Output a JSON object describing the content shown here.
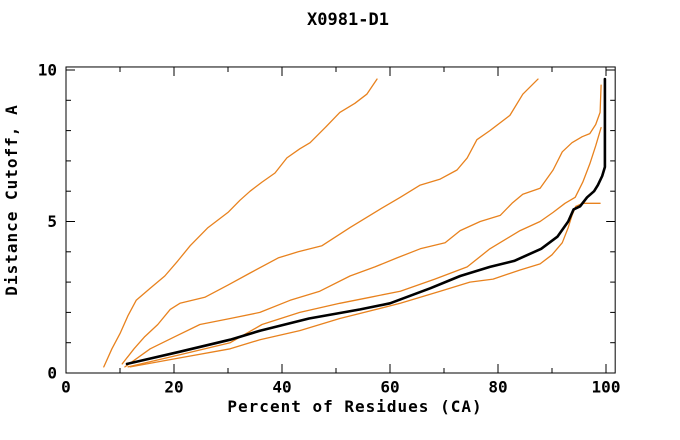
{
  "title": "X0981-D1",
  "chart_data": {
    "type": "line",
    "title": "X0981-D1",
    "xlabel": "Percent of Residues (CA)",
    "ylabel": "Distance Cutoff, A",
    "xlim": [
      0,
      101.7
    ],
    "ylim": [
      0,
      10.1
    ],
    "x_ticks_major": [
      0,
      20,
      40,
      60,
      80,
      100
    ],
    "x_ticks_minor": [
      10,
      30,
      50,
      70,
      90
    ],
    "x_tick_labels": [
      "0",
      "20",
      "40",
      "60",
      "80",
      "100"
    ],
    "y_ticks_major": [
      0,
      5,
      10
    ],
    "y_ticks_minor": [
      1,
      2,
      3,
      4,
      6,
      7,
      8,
      9
    ],
    "y_tick_labels": [
      "0",
      "5",
      "10"
    ],
    "grid": false,
    "legend": "none",
    "frame_color": "#000000",
    "model_color": "#e8821e",
    "reference_color": "#000000",
    "series": [
      {
        "id": "orange-curve-1",
        "color": "#e8821e",
        "width": 1.3,
        "points": [
          [
            7,
            0.2
          ],
          [
            8.5,
            0.8
          ],
          [
            10,
            1.3
          ],
          [
            11.5,
            1.9
          ],
          [
            13,
            2.4
          ],
          [
            15.6,
            2.8
          ],
          [
            18.3,
            3.2
          ],
          [
            20.7,
            3.7
          ],
          [
            23,
            4.2
          ],
          [
            26.3,
            4.8
          ],
          [
            30,
            5.3
          ],
          [
            32.2,
            5.7
          ],
          [
            34.1,
            6.0
          ],
          [
            36.3,
            6.3
          ],
          [
            38.7,
            6.6
          ],
          [
            40.9,
            7.1
          ],
          [
            43.3,
            7.4
          ],
          [
            45.2,
            7.6
          ],
          [
            48,
            8.1
          ],
          [
            50.7,
            8.6
          ],
          [
            53.5,
            8.9
          ],
          [
            55.7,
            9.2
          ],
          [
            57.6,
            9.7
          ]
        ]
      },
      {
        "id": "orange-curve-2",
        "color": "#e8821e",
        "width": 1.3,
        "points": [
          [
            10.4,
            0.3
          ],
          [
            12.6,
            0.8
          ],
          [
            14.6,
            1.2
          ],
          [
            17,
            1.6
          ],
          [
            19.3,
            2.1
          ],
          [
            21.1,
            2.3
          ],
          [
            25.7,
            2.5
          ],
          [
            30,
            2.9
          ],
          [
            34.1,
            3.3
          ],
          [
            39.3,
            3.8
          ],
          [
            43,
            4.0
          ],
          [
            47.4,
            4.2
          ],
          [
            52.6,
            4.8
          ],
          [
            58.1,
            5.4
          ],
          [
            61.9,
            5.8
          ],
          [
            65.6,
            6.2
          ],
          [
            69.3,
            6.4
          ],
          [
            72.4,
            6.7
          ],
          [
            74.3,
            7.1
          ],
          [
            76.1,
            7.7
          ],
          [
            78.5,
            8.0
          ],
          [
            82.2,
            8.5
          ],
          [
            84.6,
            9.2
          ],
          [
            87.4,
            9.7
          ]
        ]
      },
      {
        "id": "orange-curve-3",
        "color": "#e8821e",
        "width": 1.3,
        "points": [
          [
            10.9,
            0.2
          ],
          [
            15.6,
            0.8
          ],
          [
            20.2,
            1.2
          ],
          [
            24.8,
            1.6
          ],
          [
            30.4,
            1.8
          ],
          [
            35.9,
            2.0
          ],
          [
            41.5,
            2.4
          ],
          [
            47,
            2.7
          ],
          [
            52.6,
            3.2
          ],
          [
            57.2,
            3.5
          ],
          [
            61.3,
            3.8
          ],
          [
            65.6,
            4.1
          ],
          [
            70.2,
            4.3
          ],
          [
            73,
            4.7
          ],
          [
            76.7,
            5.0
          ],
          [
            80.4,
            5.2
          ],
          [
            82.6,
            5.6
          ],
          [
            84.6,
            5.9
          ],
          [
            87.8,
            6.1
          ],
          [
            90.2,
            6.7
          ],
          [
            91.9,
            7.3
          ],
          [
            93.7,
            7.6
          ],
          [
            95.6,
            7.8
          ],
          [
            97,
            7.9
          ],
          [
            98.1,
            8.2
          ],
          [
            98.9,
            8.6
          ],
          [
            99.1,
            9.5
          ]
        ]
      },
      {
        "id": "orange-curve-4",
        "color": "#e8821e",
        "width": 1.3,
        "points": [
          [
            11.5,
            0.2
          ],
          [
            21.1,
            0.6
          ],
          [
            30.4,
            1.0
          ],
          [
            36.3,
            1.6
          ],
          [
            43.3,
            2.0
          ],
          [
            50.7,
            2.3
          ],
          [
            56.3,
            2.5
          ],
          [
            61.9,
            2.7
          ],
          [
            68.3,
            3.1
          ],
          [
            74.3,
            3.5
          ],
          [
            78.5,
            4.1
          ],
          [
            84.1,
            4.7
          ],
          [
            87.8,
            5.0
          ],
          [
            90.2,
            5.3
          ],
          [
            92.4,
            5.6
          ],
          [
            94.3,
            5.8
          ],
          [
            95.7,
            6.3
          ],
          [
            97,
            6.9
          ],
          [
            98.1,
            7.5
          ],
          [
            99.1,
            8.1
          ]
        ]
      },
      {
        "id": "orange-curve-5",
        "color": "#e8821e",
        "width": 1.3,
        "points": [
          [
            11.9,
            0.2
          ],
          [
            21.1,
            0.5
          ],
          [
            30.4,
            0.8
          ],
          [
            35.9,
            1.1
          ],
          [
            43.3,
            1.4
          ],
          [
            50.7,
            1.8
          ],
          [
            61.9,
            2.3
          ],
          [
            69.3,
            2.7
          ],
          [
            74.8,
            3.0
          ],
          [
            79.1,
            3.1
          ],
          [
            84.1,
            3.4
          ],
          [
            87.8,
            3.6
          ],
          [
            90,
            3.9
          ],
          [
            91.9,
            4.3
          ],
          [
            93,
            4.8
          ],
          [
            93.7,
            5.2
          ],
          [
            94.4,
            5.5
          ],
          [
            95.7,
            5.6
          ],
          [
            97,
            5.6
          ],
          [
            98.9,
            5.6
          ]
        ]
      },
      {
        "id": "black-reference-curve",
        "color": "#000000",
        "width": 2.6,
        "points": [
          [
            11.3,
            0.3
          ],
          [
            21,
            0.7
          ],
          [
            30.4,
            1.1
          ],
          [
            36,
            1.4
          ],
          [
            45,
            1.8
          ],
          [
            54.5,
            2.1
          ],
          [
            60,
            2.3
          ],
          [
            67.5,
            2.8
          ],
          [
            73,
            3.2
          ],
          [
            78.5,
            3.5
          ],
          [
            83,
            3.7
          ],
          [
            88,
            4.1
          ],
          [
            91,
            4.5
          ],
          [
            93,
            5.0
          ],
          [
            94,
            5.4
          ],
          [
            95.2,
            5.5
          ],
          [
            96.5,
            5.8
          ],
          [
            97.8,
            6.0
          ],
          [
            98.5,
            6.2
          ],
          [
            99.3,
            6.5
          ],
          [
            99.8,
            6.8
          ],
          [
            99.8,
            9.7
          ]
        ]
      }
    ]
  }
}
